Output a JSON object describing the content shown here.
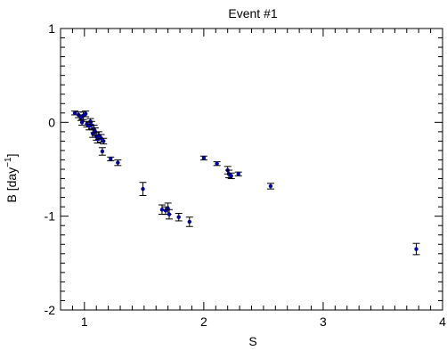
{
  "chart_data": {
    "type": "scatter",
    "title": "Event #1",
    "xlabel": "S",
    "ylabel_main": "B [day",
    "ylabel_sup": "−1",
    "ylabel_close": "]",
    "xlim": [
      0.8,
      4.0
    ],
    "ylim": [
      -2.0,
      1.0
    ],
    "x_ticks": [
      1,
      2,
      3,
      4
    ],
    "x_tick_labels": [
      "1",
      "2",
      "3",
      "4"
    ],
    "y_ticks": [
      -2,
      -1,
      0,
      1
    ],
    "y_tick_labels": [
      "-2",
      "-1",
      "0",
      "1"
    ],
    "grid": false,
    "marker_color": "#00009c",
    "errorbar_color": "#000000",
    "series": [
      {
        "points": [
          {
            "x": 0.92,
            "y": 0.1,
            "err": 0.02
          },
          {
            "x": 0.95,
            "y": 0.08,
            "err": 0.03
          },
          {
            "x": 0.97,
            "y": 0.05,
            "err": 0.03
          },
          {
            "x": 0.99,
            "y": 0.07,
            "err": 0.04
          },
          {
            "x": 1.01,
            "y": 0.09,
            "err": 0.03
          },
          {
            "x": 0.98,
            "y": 0.0,
            "err": 0.03
          },
          {
            "x": 1.02,
            "y": -0.02,
            "err": 0.03
          },
          {
            "x": 1.04,
            "y": -0.04,
            "err": 0.04
          },
          {
            "x": 1.05,
            "y": 0.01,
            "err": 0.03
          },
          {
            "x": 1.06,
            "y": -0.03,
            "err": 0.04
          },
          {
            "x": 1.08,
            "y": -0.07,
            "err": 0.04
          },
          {
            "x": 1.07,
            "y": -0.12,
            "err": 0.04
          },
          {
            "x": 1.09,
            "y": -0.1,
            "err": 0.04
          },
          {
            "x": 1.1,
            "y": -0.15,
            "err": 0.04
          },
          {
            "x": 1.11,
            "y": -0.18,
            "err": 0.04
          },
          {
            "x": 1.12,
            "y": -0.14,
            "err": 0.04
          },
          {
            "x": 1.14,
            "y": -0.17,
            "err": 0.04
          },
          {
            "x": 1.16,
            "y": -0.2,
            "err": 0.03
          },
          {
            "x": 1.15,
            "y": -0.31,
            "err": 0.04
          },
          {
            "x": 1.22,
            "y": -0.39,
            "err": 0.02
          },
          {
            "x": 1.28,
            "y": -0.43,
            "err": 0.03
          },
          {
            "x": 1.49,
            "y": -0.71,
            "err": 0.07
          },
          {
            "x": 1.65,
            "y": -0.93,
            "err": 0.05
          },
          {
            "x": 1.68,
            "y": -0.94,
            "err": 0.04
          },
          {
            "x": 1.7,
            "y": -0.92,
            "err": 0.06
          },
          {
            "x": 1.71,
            "y": -0.98,
            "err": 0.05
          },
          {
            "x": 1.79,
            "y": -1.01,
            "err": 0.04
          },
          {
            "x": 1.88,
            "y": -1.06,
            "err": 0.05
          },
          {
            "x": 2.0,
            "y": -0.38,
            "err": 0.02
          },
          {
            "x": 2.11,
            "y": -0.44,
            "err": 0.02
          },
          {
            "x": 2.2,
            "y": -0.51,
            "err": 0.04
          },
          {
            "x": 2.21,
            "y": -0.55,
            "err": 0.04
          },
          {
            "x": 2.23,
            "y": -0.57,
            "err": 0.03
          },
          {
            "x": 2.29,
            "y": -0.55,
            "err": 0.02
          },
          {
            "x": 2.56,
            "y": -0.68,
            "err": 0.03
          },
          {
            "x": 3.78,
            "y": -1.35,
            "err": 0.06
          }
        ]
      }
    ]
  }
}
